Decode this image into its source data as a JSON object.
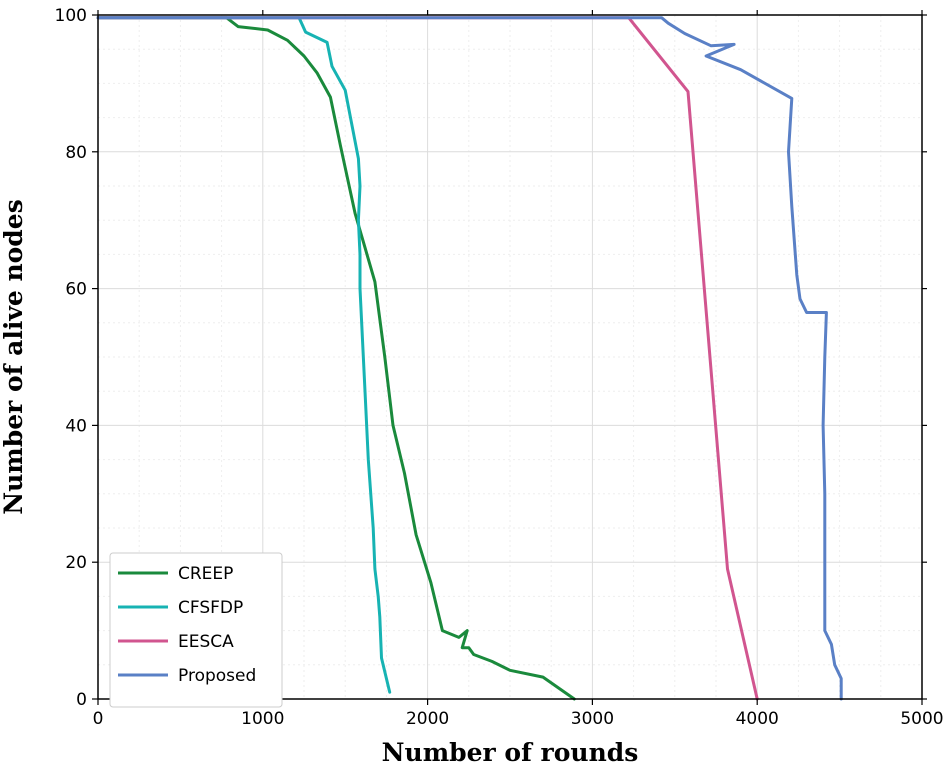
{
  "chart_data": {
    "type": "line",
    "title": "",
    "xlabel": "Number of rounds",
    "ylabel": "Number of alive nodes",
    "xlim": [
      0,
      5000
    ],
    "ylim": [
      0,
      100
    ],
    "xticks": [
      0,
      1000,
      2000,
      3000,
      4000,
      5000
    ],
    "yticks": [
      0,
      20,
      40,
      60,
      80,
      100
    ],
    "grid": true,
    "legend_position": "lower-left",
    "series": [
      {
        "name": "CREEP",
        "color": "#1a8a3c",
        "points": [
          [
            0,
            99.6
          ],
          [
            780,
            99.6
          ],
          [
            850,
            98.3
          ],
          [
            1030,
            97.8
          ],
          [
            1150,
            96.3
          ],
          [
            1250,
            94
          ],
          [
            1330,
            91.5
          ],
          [
            1410,
            88
          ],
          [
            1470,
            81
          ],
          [
            1560,
            71
          ],
          [
            1620,
            66
          ],
          [
            1680,
            61
          ],
          [
            1740,
            50
          ],
          [
            1790,
            40
          ],
          [
            1860,
            33
          ],
          [
            1930,
            24
          ],
          [
            2020,
            17
          ],
          [
            2090,
            10
          ],
          [
            2190,
            9
          ],
          [
            2240,
            10
          ],
          [
            2210,
            7.5
          ],
          [
            2250,
            7.5
          ],
          [
            2280,
            6.5
          ],
          [
            2390,
            5.5
          ],
          [
            2500,
            4.2
          ],
          [
            2700,
            3.2
          ],
          [
            2890,
            0
          ]
        ]
      },
      {
        "name": "CFSFDP",
        "color": "#17b3b3",
        "points": [
          [
            0,
            99.6
          ],
          [
            1220,
            99.6
          ],
          [
            1260,
            97.5
          ],
          [
            1390,
            96
          ],
          [
            1420,
            92.5
          ],
          [
            1500,
            89
          ],
          [
            1580,
            79
          ],
          [
            1590,
            75
          ],
          [
            1580,
            70
          ],
          [
            1590,
            65
          ],
          [
            1590,
            60
          ],
          [
            1620,
            45
          ],
          [
            1640,
            35
          ],
          [
            1670,
            25
          ],
          [
            1680,
            19
          ],
          [
            1700,
            15
          ],
          [
            1710,
            12
          ],
          [
            1720,
            6
          ],
          [
            1770,
            1
          ]
        ]
      },
      {
        "name": "EESCA",
        "color": "#d1558f",
        "points": [
          [
            0,
            99.6
          ],
          [
            3220,
            99.6
          ],
          [
            3580,
            88.8
          ],
          [
            3820,
            19
          ],
          [
            4000,
            0
          ]
        ]
      },
      {
        "name": "Proposed",
        "color": "#5a80c6",
        "points": [
          [
            0,
            99.6
          ],
          [
            3420,
            99.6
          ],
          [
            3460,
            98.8
          ],
          [
            3560,
            97.3
          ],
          [
            3720,
            95.5
          ],
          [
            3860,
            95.7
          ],
          [
            3690,
            94
          ],
          [
            3900,
            92
          ],
          [
            4210,
            87.8
          ],
          [
            4190,
            80
          ],
          [
            4210,
            72
          ],
          [
            4240,
            62
          ],
          [
            4260,
            58.5
          ],
          [
            4300,
            56.5
          ],
          [
            4420,
            56.5
          ],
          [
            4410,
            50
          ],
          [
            4400,
            40
          ],
          [
            4410,
            30
          ],
          [
            4410,
            20
          ],
          [
            4410,
            10
          ],
          [
            4450,
            8
          ],
          [
            4470,
            5
          ],
          [
            4510,
            3
          ],
          [
            4510,
            0
          ]
        ]
      }
    ]
  }
}
